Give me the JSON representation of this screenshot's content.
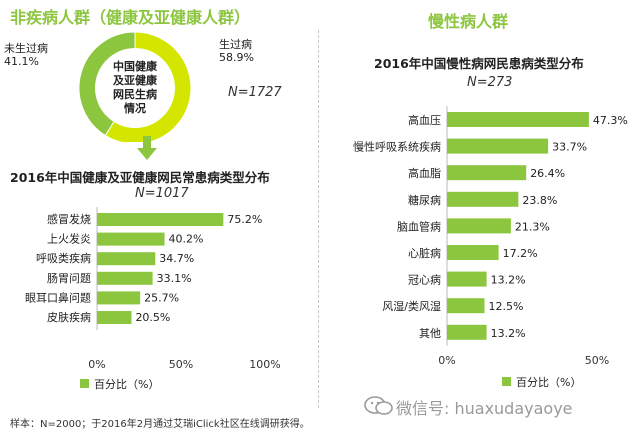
{
  "left_section": {
    "title": "非疾病人群（健康及亚健康人群）",
    "pie": {
      "center_text": [
        "中国健康",
        "及亚健康",
        "网民生病",
        "情况"
      ],
      "n_label": "N=1727",
      "slices": [
        {
          "name": "生过病",
          "value": 58.9,
          "value_text": "58.9%",
          "color": "#d4e600"
        },
        {
          "name": "未生过病",
          "value": 41.1,
          "value_text": "41.1%",
          "color": "#8cc63f"
        }
      ]
    },
    "bar_title": "2016年中国健康及亚健康网民常患病类型分布",
    "bar_n": "N=1017"
  },
  "right_section": {
    "title": "慢性病人群",
    "bar_title": "2016年中国慢性病网民患病类型分布",
    "bar_n": "N=273"
  },
  "chart_data": [
    {
      "type": "pie",
      "title": "中国健康及亚健康网民生病情况",
      "n": "N=1727",
      "categories": [
        "生过病",
        "未生过病"
      ],
      "values": [
        58.9,
        41.1
      ],
      "value_labels": [
        "58.9%",
        "41.1%"
      ]
    },
    {
      "type": "bar",
      "orientation": "horizontal",
      "title": "2016年中国健康及亚健康网民常患病类型分布",
      "n": "N=1017",
      "categories": [
        "感冒发烧",
        "上火发炎",
        "呼吸类疾病",
        "肠胃问题",
        "眼耳口鼻问题",
        "皮肤疾病"
      ],
      "series": [
        {
          "name": "百分比（%）",
          "values": [
            75.2,
            40.2,
            34.7,
            33.1,
            25.7,
            20.5
          ],
          "color": "#8cc63f"
        }
      ],
      "value_labels": [
        "75.2%",
        "40.2%",
        "34.7%",
        "33.1%",
        "25.7%",
        "20.5%"
      ],
      "xlim": [
        0,
        100
      ],
      "xticks": [
        "0%",
        "50%",
        "100%"
      ],
      "legend": "bottom-left"
    },
    {
      "type": "bar",
      "orientation": "horizontal",
      "title": "2016年中国慢性病网民患病类型分布",
      "n": "N=273",
      "categories": [
        "高血压",
        "慢性呼吸系统疾病",
        "高血脂",
        "糖尿病",
        "脑血管病",
        "心脏病",
        "冠心病",
        "风湿/类风湿",
        "其他"
      ],
      "series": [
        {
          "name": "百分比（%）",
          "values": [
            47.3,
            33.7,
            26.4,
            23.8,
            21.3,
            17.2,
            13.2,
            12.5,
            13.2
          ],
          "color": "#8cc63f"
        }
      ],
      "value_labels": [
        "47.3%",
        "33.7%",
        "26.4%",
        "23.8%",
        "21.3%",
        "17.2%",
        "13.2%",
        "12.5%",
        "13.2%"
      ],
      "xlim": [
        0,
        50
      ],
      "xticks": [
        "0%",
        "50%"
      ],
      "legend": "bottom-center"
    }
  ],
  "footer": {
    "source": "样本：N=2000；于2016年2月通过艾瑞iClick社区在线调研获得。",
    "watermark": "微信号: huaxudayaoye"
  }
}
